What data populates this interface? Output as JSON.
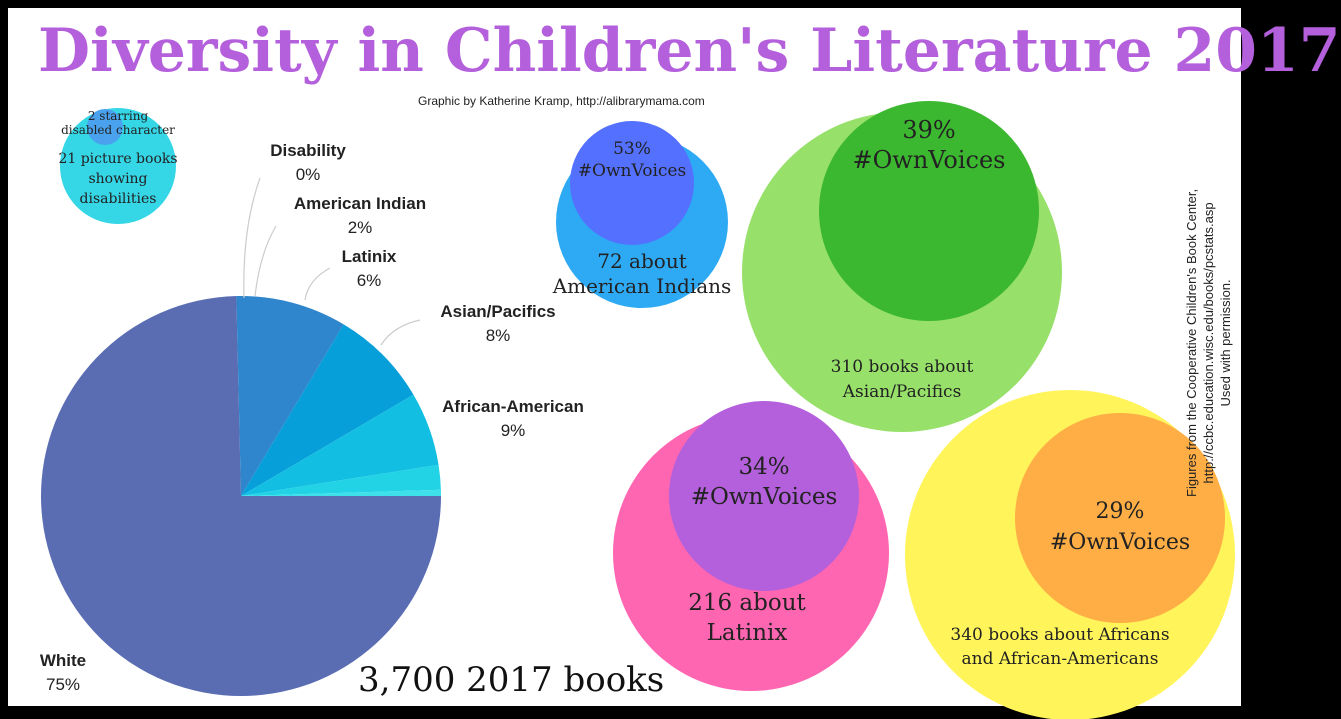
{
  "header": {
    "title": "Diversity in Children's Literature 2017",
    "credit": "Graphic by Katherine Kramp, http://alibrarymama.com"
  },
  "disability_note": {
    "line1": "2 starring",
    "line2": "disabled character",
    "line3": "21 picture books",
    "line4": "showing",
    "line5": "disabilities"
  },
  "total_label": "3,700 2017 books",
  "source": {
    "line1": "Figures from the Cooperative Children's Book Center,",
    "line2": "http://ccbc.education.wisc.edu/books/pcstats.asp",
    "line3": "Used with permission."
  },
  "colors": {
    "title": "#b45fdb",
    "white": "#5a6db3",
    "african_american": "#2f86cc",
    "asian_pacifics": "#069fd9",
    "latinix": "#12bfe2",
    "american_indian": "#22d3e6",
    "disability": "#3ee0ea"
  },
  "chart_data": [
    {
      "type": "pie",
      "slices": [
        {
          "label": "White",
          "percent_label": "75%",
          "value": 75,
          "color": "#5a6db3"
        },
        {
          "label": "African-American",
          "percent_label": "9%",
          "value": 9,
          "color": "#2f86cc"
        },
        {
          "label": "Asian/Pacifics",
          "percent_label": "8%",
          "value": 8,
          "color": "#069fd9"
        },
        {
          "label": "Latinix",
          "percent_label": "6%",
          "value": 6,
          "color": "#12bfe2"
        },
        {
          "label": "American Indian",
          "percent_label": "2%",
          "value": 2,
          "color": "#22d3e6"
        },
        {
          "label": "Disability",
          "percent_label": "0%",
          "value": 0.5,
          "color": "#3ee0ea"
        }
      ]
    },
    {
      "type": "bubble",
      "bubbles": [
        {
          "outer_text": [
            "72 about",
            "American Indians"
          ],
          "inner_text": [
            "53%",
            "#OwnVoices"
          ],
          "total": 72,
          "own_voices_percent": 53,
          "outer_color": "#2eaaf5",
          "inner_color": "#5470ff"
        },
        {
          "outer_text": [
            "310 books about",
            "Asian/Pacifics"
          ],
          "inner_text": [
            "39%",
            "#OwnVoices"
          ],
          "total": 310,
          "own_voices_percent": 39,
          "outer_color": "#97e06a",
          "inner_color": "#3cb830"
        },
        {
          "outer_text": [
            "216 about",
            "Latinix"
          ],
          "inner_text": [
            "34%",
            "#OwnVoices"
          ],
          "total": 216,
          "own_voices_percent": 34,
          "outer_color": "#ff66b2",
          "inner_color": "#b45fdb"
        },
        {
          "outer_text": [
            "340 books about Africans",
            "and African-Americans"
          ],
          "inner_text": [
            "29%",
            "#OwnVoices"
          ],
          "total": 340,
          "own_voices_percent": 29,
          "outer_color": "#fff45a",
          "inner_color": "#ffae45"
        }
      ]
    }
  ]
}
